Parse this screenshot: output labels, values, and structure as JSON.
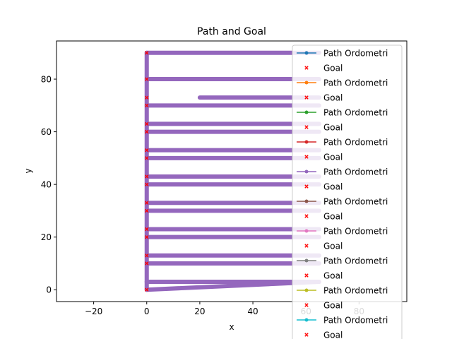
{
  "chart_data": {
    "type": "line",
    "title": "Path and Goal",
    "xlabel": "x",
    "ylabel": "y",
    "xlim": [
      -34,
      98
    ],
    "ylim": [
      -4.5,
      94.5
    ],
    "xticks": [
      -20,
      0,
      20,
      40,
      60,
      80
    ],
    "yticks": [
      0,
      20,
      40,
      60,
      80
    ],
    "xtick_labels": [
      "−20",
      "0",
      "20",
      "40",
      "60",
      "80"
    ],
    "ytick_labels": [
      "0",
      "20",
      "40",
      "60",
      "80"
    ],
    "grid": false,
    "legend_position": "right",
    "path_color": "#9467bd",
    "goal_color": "#ff0000",
    "path": {
      "vertical": {
        "x": 0,
        "y_from": 0,
        "y_to": 90
      },
      "horizontal_runs": [
        {
          "y": 90,
          "x_from": 0,
          "x_to": 65
        },
        {
          "y": 80,
          "x_from": 0,
          "x_to": 65
        },
        {
          "y": 73,
          "x_from": 20,
          "x_to": 65
        },
        {
          "y": 70,
          "x_from": 0,
          "x_to": 65
        },
        {
          "y": 63,
          "x_from": 0,
          "x_to": 65
        },
        {
          "y": 60,
          "x_from": 0,
          "x_to": 65
        },
        {
          "y": 53,
          "x_from": 0,
          "x_to": 65
        },
        {
          "y": 50,
          "x_from": 0,
          "x_to": 65
        },
        {
          "y": 43,
          "x_from": 0,
          "x_to": 65
        },
        {
          "y": 40,
          "x_from": 0,
          "x_to": 65
        },
        {
          "y": 33,
          "x_from": 0,
          "x_to": 65
        },
        {
          "y": 30,
          "x_from": 0,
          "x_to": 65
        },
        {
          "y": 23,
          "x_from": 0,
          "x_to": 65
        },
        {
          "y": 20,
          "x_from": 0,
          "x_to": 65
        },
        {
          "y": 13,
          "x_from": 0,
          "x_to": 65
        },
        {
          "y": 10,
          "x_from": 0,
          "x_to": 65
        },
        {
          "y": 3,
          "x_from": 0,
          "x_to": 65
        }
      ],
      "diagonal": {
        "x_from": 0,
        "y_from": 0,
        "x_to": 65,
        "y_to": 3
      }
    },
    "goals": [
      {
        "x": 0,
        "y": 90
      },
      {
        "x": 0,
        "y": 80
      },
      {
        "x": 0,
        "y": 73
      },
      {
        "x": 0,
        "y": 70
      },
      {
        "x": 0,
        "y": 63
      },
      {
        "x": 0,
        "y": 60
      },
      {
        "x": 0,
        "y": 53
      },
      {
        "x": 0,
        "y": 50
      },
      {
        "x": 0,
        "y": 43
      },
      {
        "x": 0,
        "y": 40
      },
      {
        "x": 0,
        "y": 33
      },
      {
        "x": 0,
        "y": 30
      },
      {
        "x": 0,
        "y": 23
      },
      {
        "x": 0,
        "y": 20
      },
      {
        "x": 0,
        "y": 13
      },
      {
        "x": 0,
        "y": 10
      },
      {
        "x": 0,
        "y": 0
      }
    ],
    "legend": [
      {
        "label": "Path Ordometri",
        "kind": "line",
        "color": "#1f77b4"
      },
      {
        "label": "Goal",
        "kind": "x",
        "color": "#ff0000"
      },
      {
        "label": "Path Ordometri",
        "kind": "line",
        "color": "#ff7f0e"
      },
      {
        "label": "Goal",
        "kind": "x",
        "color": "#ff0000"
      },
      {
        "label": "Path Ordometri",
        "kind": "line",
        "color": "#2ca02c"
      },
      {
        "label": "Goal",
        "kind": "x",
        "color": "#ff0000"
      },
      {
        "label": "Path Ordometri",
        "kind": "line",
        "color": "#d62728"
      },
      {
        "label": "Goal",
        "kind": "x",
        "color": "#ff0000"
      },
      {
        "label": "Path Ordometri",
        "kind": "line",
        "color": "#9467bd"
      },
      {
        "label": "Goal",
        "kind": "x",
        "color": "#ff0000"
      },
      {
        "label": "Path Ordometri",
        "kind": "line",
        "color": "#8c564b"
      },
      {
        "label": "Goal",
        "kind": "x",
        "color": "#ff0000"
      },
      {
        "label": "Path Ordometri",
        "kind": "line",
        "color": "#e377c2"
      },
      {
        "label": "Goal",
        "kind": "x",
        "color": "#ff0000"
      },
      {
        "label": "Path Ordometri",
        "kind": "line",
        "color": "#7f7f7f"
      },
      {
        "label": "Goal",
        "kind": "x",
        "color": "#ff0000"
      },
      {
        "label": "Path Ordometri",
        "kind": "line",
        "color": "#bcbd22"
      },
      {
        "label": "Goal",
        "kind": "x",
        "color": "#ff0000"
      },
      {
        "label": "Path Ordometri",
        "kind": "line",
        "color": "#17becf"
      },
      {
        "label": "Goal",
        "kind": "x",
        "color": "#ff0000"
      }
    ]
  }
}
